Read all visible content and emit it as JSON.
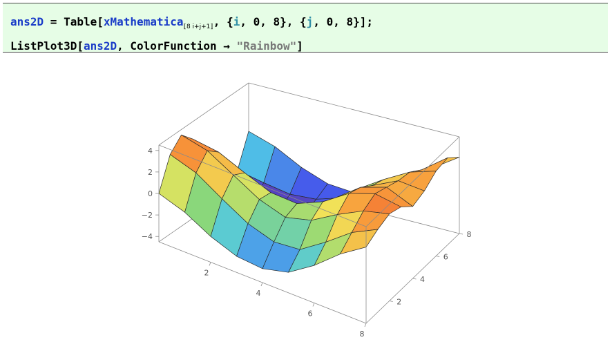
{
  "cell": {
    "line1": {
      "var": "ans2D",
      "op_set": " = ",
      "fn_table": "Table",
      "open_bracket": "[",
      "fn_x": "xMathematica",
      "sub": "⟦8 i+j+1⟧",
      "after_sub": ", {",
      "iter_i": "i",
      "range_i": ", 0, 8}, {",
      "iter_j": "j",
      "range_j": ", 0, 8}];"
    },
    "line2": {
      "fn_plot": "ListPlot3D",
      "open": "[",
      "arg": "ans2D",
      "opt": ", ColorFunction ",
      "arrow": "→",
      "space": " ",
      "str": "\"Rainbow\"",
      "close": "]"
    }
  },
  "colors": {
    "cell_background": "#e6fde6",
    "symbol_blue": "#1a3cc8",
    "iterator_teal": "#2f8fa6",
    "string_gray": "#777777"
  },
  "chart_data": {
    "type": "surface3d",
    "color_function": "Rainbow",
    "x_ticks": [
      "2",
      "4",
      "6",
      "8"
    ],
    "y_ticks": [
      "2",
      "4",
      "6",
      "8"
    ],
    "z_ticks": [
      "4",
      "2",
      "0",
      "−2",
      "−4"
    ],
    "x_range": [
      0,
      8
    ],
    "y_range": [
      0,
      8
    ],
    "z_range": [
      -4.5,
      4.5
    ],
    "grid": [
      [
        0.0,
        2.9,
        4.0,
        2.9,
        0.0,
        -2.9,
        -4.0,
        -2.9,
        0.0
      ],
      [
        -0.8,
        2.1,
        3.4,
        2.5,
        -0.2,
        -3.2,
        -4.4,
        -3.4,
        -0.8
      ],
      [
        -2.1,
        0.6,
        2.0,
        1.4,
        -1.1,
        -3.6,
        -4.6,
        -3.8,
        -2.1
      ],
      [
        -3.0,
        -0.8,
        0.6,
        0.4,
        -1.6,
        -3.4,
        -4.0,
        -3.6,
        -3.0
      ],
      [
        -3.2,
        -1.6,
        -0.2,
        0.2,
        -1.2,
        -2.4,
        -2.6,
        -2.8,
        -3.2
      ],
      [
        -2.6,
        -1.4,
        0.4,
        1.2,
        0.6,
        -0.2,
        -0.4,
        -1.6,
        -2.6
      ],
      [
        -1.0,
        0.2,
        1.8,
        2.8,
        2.4,
        1.6,
        1.2,
        0.0,
        -1.0
      ],
      [
        1.0,
        2.0,
        3.0,
        3.6,
        3.2,
        2.8,
        2.6,
        1.8,
        1.0
      ],
      [
        2.6,
        3.2,
        3.6,
        3.2,
        2.2,
        2.6,
        3.4,
        3.6,
        2.6
      ]
    ]
  }
}
